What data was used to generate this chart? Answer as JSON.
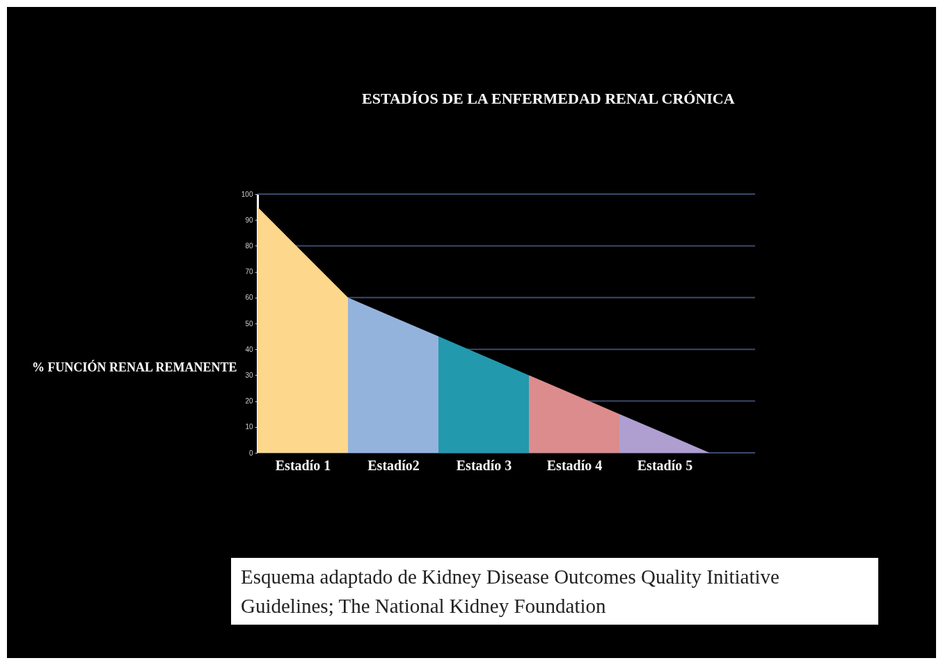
{
  "chart_data": {
    "type": "area",
    "title": "ESTADÍOS DE LA ENFERMEDAD RENAL CRÓNICA",
    "ylabel": "% FUNCIÓN RENAL REMANENTE",
    "categories": [
      null,
      "Estadío 1",
      null,
      "Estadío2",
      null,
      "Estadío 3",
      null,
      "Estadío 4",
      null,
      "Estadío 5",
      null,
      null
    ],
    "ylim": [
      0,
      100
    ],
    "yticks": [
      0,
      10,
      20,
      30,
      40,
      50,
      60,
      70,
      80,
      90,
      100
    ],
    "grid": "y",
    "series": [
      {
        "color": "#fdd78c",
        "values": [
          95,
          77.5,
          60,
          null,
          null,
          null,
          null,
          null,
          null,
          null,
          null,
          null
        ]
      },
      {
        "color": "#94b3dc",
        "values": [
          null,
          null,
          60,
          52.5,
          45,
          null,
          null,
          null,
          null,
          null,
          null,
          null
        ]
      },
      {
        "color": "#2299ad",
        "values": [
          null,
          null,
          null,
          null,
          45,
          37.5,
          30,
          null,
          null,
          null,
          null,
          null
        ]
      },
      {
        "color": "#dc8c8c",
        "values": [
          null,
          null,
          null,
          null,
          null,
          null,
          30,
          22.5,
          15,
          null,
          null,
          null
        ]
      },
      {
        "color": "#ae9fd0",
        "values": [
          null,
          null,
          null,
          null,
          null,
          null,
          null,
          null,
          15,
          7.5,
          0,
          null
        ]
      }
    ],
    "annotations": [
      "Esquema adaptado de Kidney Disease Outcomes Quality Initiative Guidelines; The National Kidney Foundation"
    ]
  }
}
